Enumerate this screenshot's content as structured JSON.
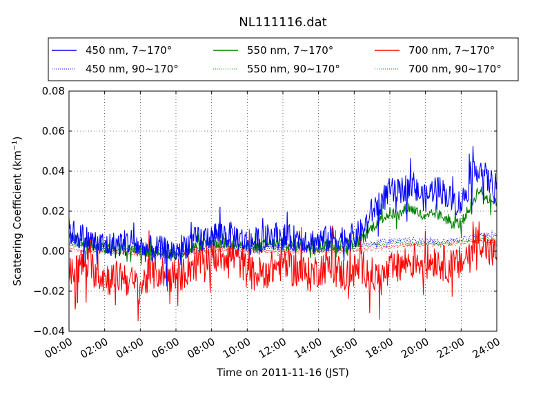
{
  "chart_data": {
    "type": "line",
    "title": "NL111116.dat",
    "xlabel": "Time on 2011-11-16 (JST)",
    "ylabel": "Scattering Coefficient (km",
    "ylabel_sup": "−1",
    "ylabel_end": ")",
    "xlim": [
      0,
      24
    ],
    "ylim": [
      -0.04,
      0.08
    ],
    "x_unit": "hours",
    "x_ticks": [
      {
        "value": 0,
        "label": "00:00"
      },
      {
        "value": 2,
        "label": "02:00"
      },
      {
        "value": 4,
        "label": "04:00"
      },
      {
        "value": 6,
        "label": "06:00"
      },
      {
        "value": 8,
        "label": "08:00"
      },
      {
        "value": 10,
        "label": "10:00"
      },
      {
        "value": 12,
        "label": "12:00"
      },
      {
        "value": 14,
        "label": "14:00"
      },
      {
        "value": 16,
        "label": "16:00"
      },
      {
        "value": 18,
        "label": "18:00"
      },
      {
        "value": 20,
        "label": "20:00"
      },
      {
        "value": 22,
        "label": "22:00"
      },
      {
        "value": 24,
        "label": "24:00"
      }
    ],
    "y_ticks": [
      {
        "value": -0.04,
        "label": "−0.04"
      },
      {
        "value": -0.02,
        "label": "−0.02"
      },
      {
        "value": 0.0,
        "label": "0.00"
      },
      {
        "value": 0.02,
        "label": "0.02"
      },
      {
        "value": 0.04,
        "label": "0.04"
      },
      {
        "value": 0.06,
        "label": "0.06"
      },
      {
        "value": 0.08,
        "label": "0.08"
      }
    ],
    "grid": true,
    "legend_position": "top",
    "series": [
      {
        "name": "450 nm, 7∼170°",
        "color": "#0000ff",
        "style": "solid",
        "x": [
          0,
          0.5,
          1,
          1.5,
          2,
          2.5,
          3,
          3.5,
          4,
          4.5,
          5,
          5.5,
          6,
          6.5,
          7,
          7.5,
          8,
          8.5,
          9,
          9.5,
          10,
          10.5,
          11,
          11.5,
          12,
          12.5,
          13,
          13.5,
          14,
          14.5,
          15,
          15.5,
          16,
          16.5,
          17,
          17.5,
          18,
          18.5,
          19,
          19.5,
          20,
          20.5,
          21,
          21.5,
          22,
          22.5,
          23,
          23.5,
          24
        ],
        "y": [
          0.01,
          0.008,
          0.006,
          0.004,
          0.003,
          0.003,
          0.004,
          0.005,
          0.002,
          0.001,
          0.001,
          0.0,
          0.0,
          0.003,
          0.005,
          0.006,
          0.008,
          0.009,
          0.008,
          0.007,
          0.004,
          0.005,
          0.006,
          0.008,
          0.007,
          0.006,
          0.007,
          0.005,
          0.005,
          0.006,
          0.006,
          0.007,
          0.007,
          0.01,
          0.02,
          0.025,
          0.03,
          0.029,
          0.033,
          0.03,
          0.026,
          0.032,
          0.03,
          0.025,
          0.024,
          0.034,
          0.043,
          0.035,
          0.033
        ],
        "noise": 0.007
      },
      {
        "name": "550 nm, 7∼170°",
        "color": "#008000",
        "style": "solid",
        "x": [
          0,
          0.5,
          1,
          1.5,
          2,
          2.5,
          3,
          3.5,
          4,
          4.5,
          5,
          5.5,
          6,
          6.5,
          7,
          7.5,
          8,
          8.5,
          9,
          9.5,
          10,
          10.5,
          11,
          11.5,
          12,
          12.5,
          13,
          13.5,
          14,
          14.5,
          15,
          15.5,
          16,
          16.5,
          17,
          17.5,
          18,
          18.5,
          19,
          19.5,
          20,
          20.5,
          21,
          21.5,
          22,
          22.5,
          23,
          23.5,
          24
        ],
        "y": [
          0.008,
          0.005,
          0.003,
          0.002,
          0.001,
          0.001,
          0.001,
          0.001,
          0.0,
          0.0,
          0.0,
          -0.001,
          -0.002,
          0.0,
          0.002,
          0.003,
          0.005,
          0.004,
          0.004,
          0.004,
          0.002,
          0.002,
          0.003,
          0.004,
          0.004,
          0.003,
          0.003,
          0.002,
          0.002,
          0.003,
          0.003,
          0.003,
          0.004,
          0.006,
          0.012,
          0.016,
          0.019,
          0.018,
          0.022,
          0.02,
          0.016,
          0.019,
          0.017,
          0.014,
          0.014,
          0.022,
          0.031,
          0.026,
          0.025
        ],
        "noise": 0.003
      },
      {
        "name": "700 nm, 7∼170°",
        "color": "#ff0000",
        "style": "solid",
        "x": [
          0,
          0.5,
          1,
          1.5,
          2,
          2.5,
          3,
          3.5,
          4,
          4.5,
          5,
          5.5,
          6,
          6.5,
          7,
          7.5,
          8,
          8.5,
          9,
          9.5,
          10,
          10.5,
          11,
          11.5,
          12,
          12.5,
          13,
          13.5,
          14,
          14.5,
          15,
          15.5,
          16,
          16.5,
          17,
          17.5,
          18,
          18.5,
          19,
          19.5,
          20,
          20.5,
          21,
          21.5,
          22,
          22.5,
          23,
          23.5,
          24
        ],
        "y": [
          -0.012,
          -0.008,
          -0.006,
          -0.01,
          -0.013,
          -0.014,
          -0.012,
          -0.016,
          -0.018,
          -0.012,
          -0.01,
          -0.012,
          -0.013,
          -0.01,
          -0.006,
          -0.004,
          -0.003,
          -0.002,
          -0.001,
          -0.004,
          -0.01,
          -0.012,
          -0.01,
          -0.008,
          -0.006,
          -0.009,
          -0.01,
          -0.012,
          -0.009,
          -0.007,
          -0.01,
          -0.012,
          -0.01,
          -0.008,
          -0.012,
          -0.014,
          -0.01,
          -0.008,
          -0.005,
          -0.004,
          -0.006,
          -0.004,
          -0.006,
          -0.008,
          -0.006,
          0.0,
          0.008,
          0.0,
          -0.002
        ],
        "noise": 0.009
      },
      {
        "name": "450 nm, 90∼170°",
        "color": "#0000ff",
        "style": "dotted",
        "x": [
          0,
          1,
          2,
          3,
          4,
          5,
          6,
          7,
          8,
          9,
          10,
          11,
          12,
          13,
          14,
          15,
          16,
          17,
          18,
          19,
          20,
          21,
          22,
          23,
          24
        ],
        "y": [
          0.004,
          0.003,
          0.002,
          0.002,
          0.001,
          0.001,
          0.0,
          0.001,
          0.002,
          0.003,
          0.002,
          0.002,
          0.003,
          0.003,
          0.002,
          0.002,
          0.003,
          0.004,
          0.005,
          0.006,
          0.005,
          0.005,
          0.006,
          0.008,
          0.008
        ],
        "noise": 0.0012
      },
      {
        "name": "550 nm, 90∼170°",
        "color": "#008000",
        "style": "dotted",
        "x": [
          0,
          1,
          2,
          3,
          4,
          5,
          6,
          7,
          8,
          9,
          10,
          11,
          12,
          13,
          14,
          15,
          16,
          17,
          18,
          19,
          20,
          21,
          22,
          23,
          24
        ],
        "y": [
          0.003,
          0.002,
          0.001,
          0.001,
          0.0,
          0.0,
          -0.001,
          0.0,
          0.001,
          0.002,
          0.001,
          0.001,
          0.002,
          0.002,
          0.001,
          0.001,
          0.002,
          0.003,
          0.004,
          0.004,
          0.004,
          0.004,
          0.005,
          0.006,
          0.006
        ],
        "noise": 0.001
      },
      {
        "name": "700 nm, 90∼170°",
        "color": "#ff0000",
        "style": "dotted",
        "x": [
          0,
          1,
          2,
          3,
          4,
          5,
          6,
          7,
          8,
          9,
          10,
          11,
          12,
          13,
          14,
          15,
          16,
          17,
          18,
          19,
          20,
          21,
          22,
          23,
          24
        ],
        "y": [
          0.001,
          0.0,
          0.0,
          -0.001,
          -0.001,
          -0.002,
          -0.002,
          -0.001,
          0.0,
          0.001,
          0.0,
          0.0,
          0.0,
          0.0,
          0.0,
          0.0,
          0.001,
          0.001,
          0.002,
          0.003,
          0.003,
          0.003,
          0.004,
          0.005,
          0.004
        ],
        "noise": 0.001
      }
    ]
  }
}
